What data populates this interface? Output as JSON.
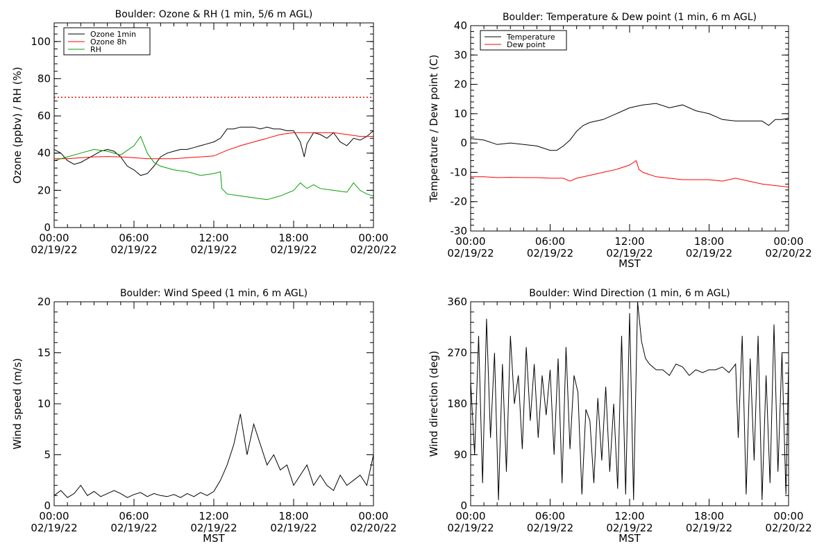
{
  "chart_data": [
    {
      "type": "line",
      "title": "Boulder: Ozone & RH (1 min, 5/6 m AGL)",
      "ylabel": "Ozone (ppbv) / RH (%)",
      "xlabel": "",
      "x_ticks": [
        {
          "hours": 0,
          "time": "00:00",
          "date": "02/19/22"
        },
        {
          "hours": 6,
          "time": "06:00",
          "date": "02/19/22"
        },
        {
          "hours": 12,
          "time": "12:00",
          "date": "02/19/22"
        },
        {
          "hours": 18,
          "time": "18:00",
          "date": "02/19/22"
        },
        {
          "hours": 24,
          "time": "00:00",
          "date": "02/20/22"
        }
      ],
      "xlim": [
        0,
        24
      ],
      "ylim": [
        0,
        110
      ],
      "y_ticks": [
        0,
        20,
        40,
        60,
        80,
        100
      ],
      "legend": "top-left",
      "reference_lines": [
        {
          "y": 70,
          "color": "#ff0000",
          "style": "dotted"
        }
      ],
      "series": [
        {
          "name": "Ozone 1min",
          "color": "#000000",
          "x": [
            0,
            0.5,
            1,
            1.5,
            2,
            2.5,
            3,
            3.5,
            4,
            4.5,
            5,
            5.5,
            6,
            6.5,
            7,
            7.5,
            8,
            8.5,
            9,
            9.5,
            10,
            10.5,
            11,
            11.5,
            12,
            12.5,
            13,
            13.5,
            14,
            14.5,
            15,
            15.5,
            16,
            16.5,
            17,
            17.5,
            18,
            18.5,
            18.8,
            19,
            19.5,
            20,
            20.5,
            21,
            21.5,
            22,
            22.5,
            23,
            23.5,
            24
          ],
          "y": [
            42,
            40,
            36,
            34,
            35,
            37,
            39,
            41,
            42,
            41,
            38,
            33,
            31,
            28,
            29,
            33,
            38,
            40,
            41,
            42,
            42,
            43,
            44,
            45,
            46,
            48,
            53,
            53,
            54,
            54,
            54,
            53,
            54,
            53,
            53,
            52,
            52,
            46,
            38,
            45,
            51,
            50,
            48,
            51,
            46,
            44,
            48,
            47,
            49,
            52
          ]
        },
        {
          "name": "Ozone 8h",
          "color": "#ff0000",
          "x": [
            0,
            1,
            2,
            3,
            4,
            5,
            6,
            7,
            8,
            9,
            10,
            11,
            12,
            12.5,
            13,
            14,
            15,
            16,
            17,
            18,
            19,
            20,
            21,
            22,
            23,
            24
          ],
          "y": [
            37,
            37,
            37.5,
            38,
            38.2,
            38,
            37.5,
            37,
            37,
            37,
            37.5,
            38,
            38.5,
            40,
            41.5,
            44,
            46,
            48,
            50,
            51,
            51,
            51,
            51,
            50,
            49,
            49
          ]
        },
        {
          "name": "RH",
          "color": "#00a000",
          "x": [
            0,
            1,
            2,
            3,
            4,
            5,
            6,
            6.5,
            7,
            7.5,
            8,
            9,
            10,
            11,
            12,
            12.5,
            12.6,
            13,
            14,
            15,
            16,
            17,
            18,
            18.5,
            19,
            19.5,
            20,
            21,
            22,
            22.5,
            23,
            23.5,
            24
          ],
          "y": [
            36,
            38,
            40,
            42,
            41,
            39,
            44,
            49,
            40,
            35,
            33,
            31,
            30,
            28,
            29,
            30,
            21,
            18,
            17,
            16,
            15,
            17,
            20,
            24,
            21,
            23,
            21,
            20,
            19,
            24,
            20,
            18,
            17
          ]
        }
      ]
    },
    {
      "type": "line",
      "title": "Boulder: Temperature & Dew point (1 min, 6 m AGL)",
      "ylabel": "Temperature / Dew point (C)",
      "xlabel": "MST",
      "x_ticks": [
        {
          "hours": 0,
          "time": "00:00",
          "date": "02/19/22"
        },
        {
          "hours": 6,
          "time": "06:00",
          "date": "02/19/22"
        },
        {
          "hours": 12,
          "time": "12:00",
          "date": "02/19/22"
        },
        {
          "hours": 18,
          "time": "18:00",
          "date": "02/19/22"
        },
        {
          "hours": 24,
          "time": "00:00",
          "date": "02/20/22"
        }
      ],
      "xlim": [
        0,
        24
      ],
      "ylim": [
        -30,
        40
      ],
      "y_ticks": [
        -30,
        -20,
        -10,
        0,
        10,
        20,
        30,
        40
      ],
      "legend": "top-left",
      "series": [
        {
          "name": "Temperature",
          "color": "#000000",
          "x": [
            0,
            1,
            2,
            3,
            4,
            5,
            6,
            6.5,
            7,
            7.5,
            8,
            8.5,
            9,
            10,
            11,
            12,
            13,
            14,
            15,
            16,
            17,
            18,
            19,
            20,
            21,
            22,
            22.5,
            23,
            23.5,
            24
          ],
          "y": [
            1.5,
            1,
            -0.5,
            0,
            -0.5,
            -1,
            -2.5,
            -2.5,
            -1,
            1,
            4,
            6,
            7,
            8,
            10,
            12,
            13,
            13.5,
            12,
            13,
            11,
            10,
            8,
            7.5,
            7.5,
            7.5,
            6,
            8,
            8,
            8.5
          ]
        },
        {
          "name": "Dew point",
          "color": "#ff0000",
          "x": [
            0,
            1,
            2,
            3,
            4,
            5,
            6,
            7,
            7.5,
            8,
            9,
            10,
            11,
            12,
            12.5,
            12.7,
            13,
            14,
            15,
            16,
            17,
            18,
            19,
            20,
            21,
            22,
            23,
            24
          ],
          "y": [
            -11.5,
            -11.5,
            -11.8,
            -11.7,
            -11.8,
            -11.8,
            -12,
            -12,
            -13,
            -12,
            -11,
            -10,
            -9,
            -7.5,
            -6,
            -9,
            -10,
            -11.5,
            -12,
            -12.5,
            -12.5,
            -12.5,
            -13,
            -12,
            -13,
            -14,
            -14.5,
            -15
          ]
        }
      ]
    },
    {
      "type": "line",
      "title": "Boulder: Wind Speed (1 min, 6 m AGL)",
      "ylabel": "Wind speed (m/s)",
      "xlabel": "MST",
      "x_ticks": [
        {
          "hours": 0,
          "time": "00:00",
          "date": "02/19/22"
        },
        {
          "hours": 6,
          "time": "06:00",
          "date": "02/19/22"
        },
        {
          "hours": 12,
          "time": "12:00",
          "date": "02/19/22"
        },
        {
          "hours": 18,
          "time": "18:00",
          "date": "02/19/22"
        },
        {
          "hours": 24,
          "time": "00:00",
          "date": "02/20/22"
        }
      ],
      "xlim": [
        0,
        24
      ],
      "ylim": [
        0,
        20
      ],
      "y_ticks": [
        0,
        5,
        10,
        15,
        20
      ],
      "legend": "none",
      "series": [
        {
          "name": "",
          "color": "#000000",
          "x": [
            0,
            0.5,
            1,
            1.5,
            2,
            2.5,
            3,
            3.5,
            4,
            4.5,
            5,
            5.5,
            6,
            6.5,
            7,
            7.5,
            8,
            8.5,
            9,
            9.5,
            10,
            10.5,
            11,
            11.5,
            12,
            12.5,
            13,
            13.5,
            14,
            14.5,
            15,
            15.5,
            16,
            16.5,
            17,
            17.5,
            18,
            18.5,
            19,
            19.5,
            20,
            20.5,
            21,
            21.5,
            22,
            22.5,
            23,
            23.5,
            24
          ],
          "y": [
            1,
            1.5,
            0.8,
            1.2,
            2,
            1,
            1.4,
            0.9,
            1.2,
            1.5,
            1.2,
            0.8,
            1.1,
            1.3,
            0.9,
            1.2,
            1,
            0.9,
            1.1,
            0.8,
            1.2,
            0.9,
            1.3,
            1,
            1.4,
            2.5,
            4,
            6,
            9,
            5,
            8,
            6,
            4,
            5,
            3.5,
            4,
            2,
            3,
            4,
            2,
            3,
            2,
            1.5,
            3,
            2,
            2.5,
            3,
            2,
            5
          ]
        }
      ]
    },
    {
      "type": "line",
      "title": "Boulder: Wind Direction (1 min, 6 m AGL)",
      "ylabel": "Wind direction (deg)",
      "xlabel": "MST",
      "x_ticks": [
        {
          "hours": 0,
          "time": "00:00",
          "date": "02/19/22"
        },
        {
          "hours": 6,
          "time": "06:00",
          "date": "02/19/22"
        },
        {
          "hours": 12,
          "time": "12:00",
          "date": "02/19/22"
        },
        {
          "hours": 18,
          "time": "18:00",
          "date": "02/19/22"
        },
        {
          "hours": 24,
          "time": "00:00",
          "date": "02/20/22"
        }
      ],
      "xlim": [
        0,
        24
      ],
      "ylim": [
        0,
        360
      ],
      "y_ticks": [
        0,
        90,
        180,
        270,
        360
      ],
      "legend": "none",
      "series": [
        {
          "name": "",
          "color": "#000000",
          "x": [
            0,
            0.3,
            0.6,
            0.9,
            1.2,
            1.5,
            1.8,
            2.1,
            2.4,
            2.7,
            3,
            3.3,
            3.6,
            3.9,
            4.2,
            4.5,
            4.8,
            5.1,
            5.4,
            5.7,
            6,
            6.3,
            6.6,
            6.9,
            7.2,
            7.5,
            7.8,
            8.1,
            8.4,
            8.7,
            9,
            9.3,
            9.6,
            9.9,
            10.2,
            10.5,
            10.8,
            11.1,
            11.4,
            11.7,
            12,
            12.3,
            12.6,
            12.9,
            13.2,
            13.5,
            14,
            14.5,
            15,
            15.5,
            16,
            16.5,
            17,
            17.5,
            18,
            18.5,
            19,
            19.5,
            20,
            20.2,
            20.5,
            20.8,
            21.1,
            21.4,
            21.7,
            22,
            22.3,
            22.6,
            22.9,
            23.2,
            23.5,
            23.8,
            24
          ],
          "y": [
            220,
            90,
            300,
            40,
            330,
            120,
            270,
            10,
            250,
            60,
            300,
            180,
            230,
            100,
            280,
            150,
            250,
            120,
            230,
            160,
            240,
            90,
            260,
            40,
            280,
            100,
            230,
            200,
            20,
            170,
            150,
            40,
            190,
            80,
            210,
            60,
            180,
            30,
            300,
            20,
            340,
            10,
            360,
            290,
            260,
            250,
            240,
            240,
            230,
            250,
            245,
            230,
            240,
            235,
            240,
            240,
            245,
            235,
            250,
            120,
            300,
            20,
            260,
            80,
            300,
            10,
            230,
            40,
            320,
            60,
            270,
            20,
            250
          ]
        }
      ]
    }
  ]
}
